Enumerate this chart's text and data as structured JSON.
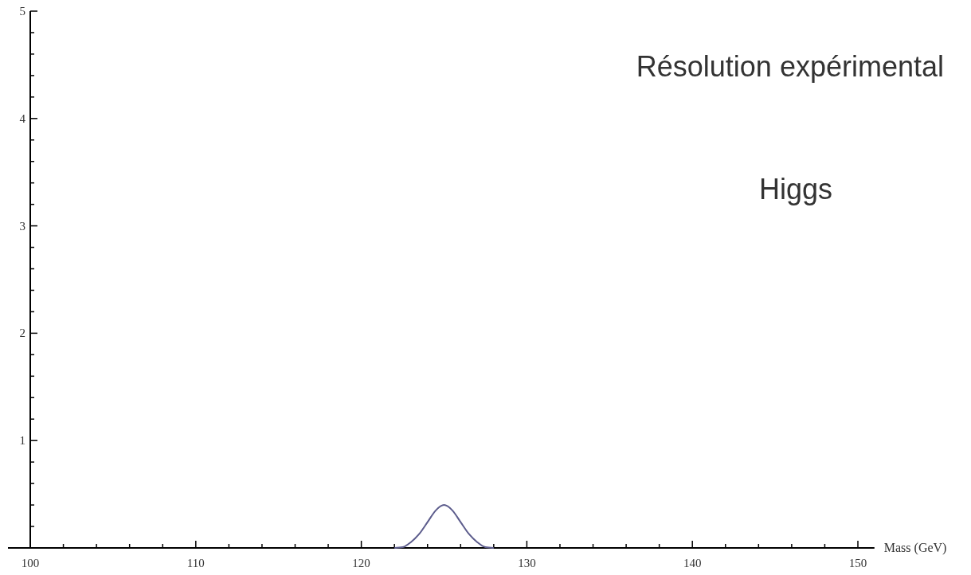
{
  "chart_data": {
    "type": "line",
    "xlabel": "Mass (GeV)",
    "annotations": [
      "Résolution expérimental",
      "Higgs"
    ],
    "xlim": [
      100,
      151
    ],
    "ylim": [
      0,
      5
    ],
    "xticks": [
      100,
      {
        "value": 102,
        "label": null
      },
      {
        "value": 104,
        "label": null
      },
      {
        "value": 106,
        "label": null
      },
      {
        "value": 108,
        "label": null
      },
      110,
      {
        "value": 112,
        "label": null
      },
      {
        "value": 114,
        "label": null
      },
      {
        "value": 116,
        "label": null
      },
      {
        "value": 118,
        "label": null
      },
      120,
      {
        "value": 122,
        "label": null
      },
      {
        "value": 124,
        "label": null
      },
      {
        "value": 126,
        "label": null
      },
      {
        "value": 128,
        "label": null
      },
      130,
      {
        "value": 132,
        "label": null
      },
      {
        "value": 134,
        "label": null
      },
      {
        "value": 136,
        "label": null
      },
      {
        "value": 138,
        "label": null
      },
      140,
      {
        "value": 142,
        "label": null
      },
      {
        "value": 144,
        "label": null
      },
      {
        "value": 146,
        "label": null
      },
      {
        "value": 148,
        "label": null
      },
      150
    ],
    "yticks": [
      {
        "value": 0.2,
        "label": null
      },
      {
        "value": 0.4,
        "label": null
      },
      {
        "value": 0.6,
        "label": null
      },
      {
        "value": 0.8,
        "label": null
      },
      1,
      {
        "value": 1.2,
        "label": null
      },
      {
        "value": 1.4,
        "label": null
      },
      {
        "value": 1.6,
        "label": null
      },
      {
        "value": 1.8,
        "label": null
      },
      2,
      {
        "value": 2.2,
        "label": null
      },
      {
        "value": 2.4,
        "label": null
      },
      {
        "value": 2.6,
        "label": null
      },
      {
        "value": 2.8,
        "label": null
      },
      3,
      {
        "value": 3.2,
        "label": null
      },
      {
        "value": 3.4,
        "label": null
      },
      {
        "value": 3.6,
        "label": null
      },
      {
        "value": 3.8,
        "label": null
      },
      4,
      {
        "value": 4.2,
        "label": null
      },
      {
        "value": 4.4,
        "label": null
      },
      {
        "value": 4.6,
        "label": null
      },
      {
        "value": 4.8,
        "label": null
      },
      5
    ],
    "x": [
      122,
      122.5,
      123,
      123.5,
      124,
      124.5,
      125,
      125.5,
      126,
      126.5,
      127,
      127.5,
      128
    ],
    "series": [
      {
        "color": "#5c5c8c",
        "values": [
          0,
          0.007,
          0.054,
          0.13,
          0.24,
          0.35,
          0.4,
          0.35,
          0.24,
          0.13,
          0.054,
          0.007,
          0
        ]
      }
    ],
    "marker": "none",
    "line_style": "solid"
  }
}
